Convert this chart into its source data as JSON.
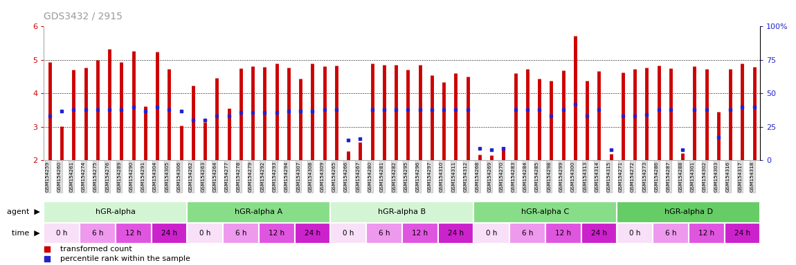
{
  "title": "GDS3432 / 2915",
  "title_color": "#999999",
  "ylim_left": [
    2,
    6
  ],
  "ylim_right": [
    0,
    100
  ],
  "yticks_left": [
    2,
    3,
    4,
    5,
    6
  ],
  "yticks_right": [
    0,
    25,
    50,
    75,
    100
  ],
  "ytick_labels_right": [
    "0",
    "25",
    "50",
    "75",
    "100%"
  ],
  "bar_color": "#cc0000",
  "marker_color": "#2222cc",
  "baseline": 2.0,
  "samples": [
    {
      "name": "GSM154259",
      "value": 4.93,
      "percentile": 33,
      "group": "hGR-alpha",
      "time": "0 h"
    },
    {
      "name": "GSM154260",
      "value": 3.02,
      "percentile": 37,
      "group": "hGR-alpha",
      "time": "6 h"
    },
    {
      "name": "GSM154261",
      "value": 4.7,
      "percentile": 38,
      "group": "hGR-alpha",
      "time": "6 h"
    },
    {
      "name": "GSM154274",
      "value": 4.78,
      "percentile": 38,
      "group": "hGR-alpha",
      "time": "12 h"
    },
    {
      "name": "GSM154275",
      "value": 5.0,
      "percentile": 38,
      "group": "hGR-alpha",
      "time": "12 h"
    },
    {
      "name": "GSM154276",
      "value": 5.32,
      "percentile": 38,
      "group": "hGR-alpha",
      "time": "12 h"
    },
    {
      "name": "GSM154289",
      "value": 4.93,
      "percentile": 38,
      "group": "hGR-alpha",
      "time": "24 h"
    },
    {
      "name": "GSM154290",
      "value": 5.26,
      "percentile": 40,
      "group": "hGR-alpha",
      "time": "24 h"
    },
    {
      "name": "GSM154291",
      "value": 3.62,
      "percentile": 37,
      "group": "hGR-alpha",
      "time": "24 h"
    },
    {
      "name": "GSM154304",
      "value": 5.24,
      "percentile": 40,
      "group": "hGR-alpha",
      "time": "24 h"
    },
    {
      "name": "GSM154305",
      "value": 4.72,
      "percentile": 38,
      "group": "hGR-alpha",
      "time": "24 h"
    },
    {
      "name": "GSM154306",
      "value": 3.03,
      "percentile": 37,
      "group": "hGR-alpha",
      "time": "24 h"
    },
    {
      "name": "GSM154262",
      "value": 4.23,
      "percentile": 30,
      "group": "hGR-alpha A",
      "time": "0 h"
    },
    {
      "name": "GSM154263",
      "value": 3.14,
      "percentile": 30,
      "group": "hGR-alpha A",
      "time": "0 h"
    },
    {
      "name": "GSM154264",
      "value": 4.47,
      "percentile": 33,
      "group": "hGR-alpha A",
      "time": "6 h"
    },
    {
      "name": "GSM154277",
      "value": 3.55,
      "percentile": 33,
      "group": "hGR-alpha A",
      "time": "12 h"
    },
    {
      "name": "GSM154278",
      "value": 4.75,
      "percentile": 36,
      "group": "hGR-alpha A",
      "time": "12 h"
    },
    {
      "name": "GSM154279",
      "value": 4.82,
      "percentile": 36,
      "group": "hGR-alpha A",
      "time": "12 h"
    },
    {
      "name": "GSM154292",
      "value": 4.8,
      "percentile": 36,
      "group": "hGR-alpha A",
      "time": "24 h"
    },
    {
      "name": "GSM154293",
      "value": 4.9,
      "percentile": 36,
      "group": "hGR-alpha A",
      "time": "24 h"
    },
    {
      "name": "GSM154294",
      "value": 4.78,
      "percentile": 37,
      "group": "hGR-alpha A",
      "time": "24 h"
    },
    {
      "name": "GSM154307",
      "value": 4.45,
      "percentile": 37,
      "group": "hGR-alpha A",
      "time": "24 h"
    },
    {
      "name": "GSM154308",
      "value": 4.9,
      "percentile": 37,
      "group": "hGR-alpha A",
      "time": "24 h"
    },
    {
      "name": "GSM154309",
      "value": 4.82,
      "percentile": 38,
      "group": "hGR-alpha A",
      "time": "24 h"
    },
    {
      "name": "GSM154265",
      "value": 4.83,
      "percentile": 38,
      "group": "hGR-alpha B",
      "time": "0 h"
    },
    {
      "name": "GSM154266",
      "value": 2.28,
      "percentile": 15,
      "group": "hGR-alpha B",
      "time": "0 h"
    },
    {
      "name": "GSM154267",
      "value": 2.55,
      "percentile": 16,
      "group": "hGR-alpha B",
      "time": "0 h"
    },
    {
      "name": "GSM154280",
      "value": 4.9,
      "percentile": 38,
      "group": "hGR-alpha B",
      "time": "6 h"
    },
    {
      "name": "GSM154281",
      "value": 4.85,
      "percentile": 38,
      "group": "hGR-alpha B",
      "time": "6 h"
    },
    {
      "name": "GSM154282",
      "value": 4.85,
      "percentile": 38,
      "group": "hGR-alpha B",
      "time": "6 h"
    },
    {
      "name": "GSM154295",
      "value": 4.7,
      "percentile": 38,
      "group": "hGR-alpha B",
      "time": "12 h"
    },
    {
      "name": "GSM154296",
      "value": 4.85,
      "percentile": 38,
      "group": "hGR-alpha B",
      "time": "12 h"
    },
    {
      "name": "GSM154297",
      "value": 4.55,
      "percentile": 38,
      "group": "hGR-alpha B",
      "time": "12 h"
    },
    {
      "name": "GSM154310",
      "value": 4.33,
      "percentile": 38,
      "group": "hGR-alpha B",
      "time": "24 h"
    },
    {
      "name": "GSM154311",
      "value": 4.6,
      "percentile": 38,
      "group": "hGR-alpha B",
      "time": "24 h"
    },
    {
      "name": "GSM154312",
      "value": 4.5,
      "percentile": 38,
      "group": "hGR-alpha B",
      "time": "24 h"
    },
    {
      "name": "GSM154268",
      "value": 2.18,
      "percentile": 9,
      "group": "hGR-alpha C",
      "time": "0 h"
    },
    {
      "name": "GSM154269",
      "value": 2.15,
      "percentile": 8,
      "group": "hGR-alpha C",
      "time": "0 h"
    },
    {
      "name": "GSM154270",
      "value": 2.35,
      "percentile": 9,
      "group": "hGR-alpha C",
      "time": "0 h"
    },
    {
      "name": "GSM154283",
      "value": 4.6,
      "percentile": 38,
      "group": "hGR-alpha C",
      "time": "6 h"
    },
    {
      "name": "GSM154284",
      "value": 4.72,
      "percentile": 38,
      "group": "hGR-alpha C",
      "time": "6 h"
    },
    {
      "name": "GSM154285",
      "value": 4.45,
      "percentile": 38,
      "group": "hGR-alpha C",
      "time": "6 h"
    },
    {
      "name": "GSM154298",
      "value": 4.38,
      "percentile": 33,
      "group": "hGR-alpha C",
      "time": "12 h"
    },
    {
      "name": "GSM154299",
      "value": 4.68,
      "percentile": 38,
      "group": "hGR-alpha C",
      "time": "12 h"
    },
    {
      "name": "GSM154300",
      "value": 5.72,
      "percentile": 42,
      "group": "hGR-alpha C",
      "time": "12 h"
    },
    {
      "name": "GSM154313",
      "value": 4.38,
      "percentile": 33,
      "group": "hGR-alpha C",
      "time": "24 h"
    },
    {
      "name": "GSM154314",
      "value": 4.67,
      "percentile": 38,
      "group": "hGR-alpha C",
      "time": "24 h"
    },
    {
      "name": "GSM154315",
      "value": 2.2,
      "percentile": 8,
      "group": "hGR-alpha C",
      "time": "24 h"
    },
    {
      "name": "GSM154271",
      "value": 4.62,
      "percentile": 33,
      "group": "hGR-alpha D",
      "time": "0 h"
    },
    {
      "name": "GSM154272",
      "value": 4.72,
      "percentile": 33,
      "group": "hGR-alpha D",
      "time": "0 h"
    },
    {
      "name": "GSM154273",
      "value": 4.78,
      "percentile": 34,
      "group": "hGR-alpha D",
      "time": "0 h"
    },
    {
      "name": "GSM154286",
      "value": 4.83,
      "percentile": 38,
      "group": "hGR-alpha D",
      "time": "6 h"
    },
    {
      "name": "GSM154287",
      "value": 4.75,
      "percentile": 38,
      "group": "hGR-alpha D",
      "time": "6 h"
    },
    {
      "name": "GSM154288",
      "value": 2.22,
      "percentile": 8,
      "group": "hGR-alpha D",
      "time": "6 h"
    },
    {
      "name": "GSM154301",
      "value": 4.82,
      "percentile": 38,
      "group": "hGR-alpha D",
      "time": "12 h"
    },
    {
      "name": "GSM154302",
      "value": 4.72,
      "percentile": 38,
      "group": "hGR-alpha D",
      "time": "12 h"
    },
    {
      "name": "GSM154303",
      "value": 3.45,
      "percentile": 17,
      "group": "hGR-alpha D",
      "time": "12 h"
    },
    {
      "name": "GSM154316",
      "value": 4.72,
      "percentile": 38,
      "group": "hGR-alpha D",
      "time": "24 h"
    },
    {
      "name": "GSM154317",
      "value": 4.9,
      "percentile": 40,
      "group": "hGR-alpha D",
      "time": "24 h"
    },
    {
      "name": "GSM154318",
      "value": 4.8,
      "percentile": 40,
      "group": "hGR-alpha D",
      "time": "24 h"
    }
  ],
  "groups": [
    {
      "name": "hGR-alpha",
      "color": "#d4f5d4",
      "start": 0,
      "end": 12
    },
    {
      "name": "hGR-alpha A",
      "color": "#88dd88",
      "start": 12,
      "end": 24
    },
    {
      "name": "hGR-alpha B",
      "color": "#d4f5d4",
      "start": 24,
      "end": 36
    },
    {
      "name": "hGR-alpha C",
      "color": "#88dd88",
      "start": 36,
      "end": 48
    },
    {
      "name": "hGR-alpha D",
      "color": "#66cc66",
      "start": 48,
      "end": 60
    }
  ],
  "time_colors": [
    "#f8e0f8",
    "#ee99ee",
    "#e055e0",
    "#cc22cc"
  ],
  "time_labels": [
    "0 h",
    "6 h",
    "12 h",
    "24 h"
  ],
  "background_color": "#ffffff",
  "tick_label_bg": "#dddddd",
  "tick_label_edge": "#aaaaaa"
}
